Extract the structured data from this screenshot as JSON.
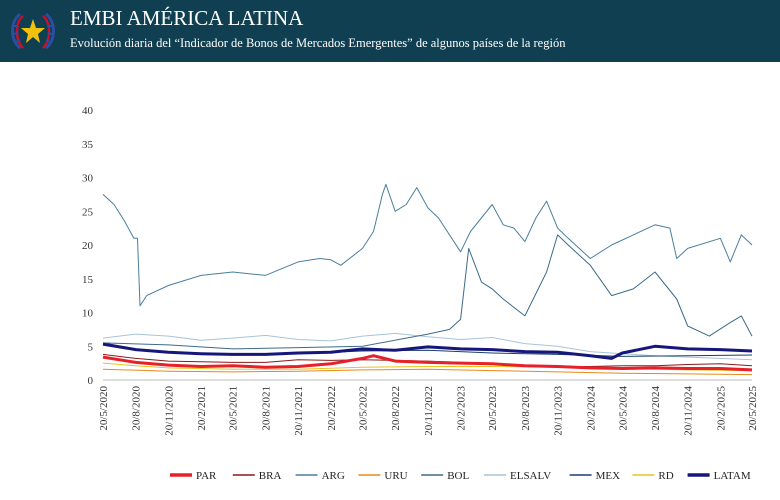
{
  "header": {
    "title": "EMBI AMÉRICA LATINA",
    "subtitle": "Evolución diaria del “Indicador de Bonos de Mercados Emergentes” de algunos países de la región"
  },
  "colors": {
    "header_bg": "#0f3f51",
    "emblem_star": "#f2c10e",
    "emblem_red": "#c8102e",
    "emblem_blue": "#2a4ea0"
  },
  "chart_data": {
    "type": "line",
    "title": "",
    "xlabel": "",
    "ylabel": "",
    "ylim": [
      0,
      40
    ],
    "yticks": [
      0,
      5,
      10,
      15,
      20,
      25,
      30,
      35,
      40
    ],
    "xlim": [
      "2020-05-20",
      "2025-05-20"
    ],
    "xtick_labels": [
      "20/5/2020",
      "20/8/2020",
      "20/11/2020",
      "20/2/2021",
      "20/5/2021",
      "20/8/2021",
      "20/11/2021",
      "20/2/2022",
      "20/5/2022",
      "20/8/2022",
      "20/11/2022",
      "20/2/2023",
      "20/5/2023",
      "20/8/2023",
      "20/11/2023",
      "20/2/2024",
      "20/5/2024",
      "20/8/2024",
      "20/11/2024",
      "20/2/2025",
      "20/5/2025"
    ],
    "grid": false,
    "legend_position": "bottom",
    "series": [
      {
        "name": "PAR",
        "color": "#e8202a",
        "width": 3,
        "points": [
          [
            "2020-05-20",
            3.4
          ],
          [
            "2020-08-20",
            2.6
          ],
          [
            "2020-11-20",
            2.2
          ],
          [
            "2021-02-20",
            2.0
          ],
          [
            "2021-05-20",
            2.1
          ],
          [
            "2021-08-20",
            1.9
          ],
          [
            "2021-11-20",
            2.0
          ],
          [
            "2022-02-20",
            2.4
          ],
          [
            "2022-05-20",
            3.2
          ],
          [
            "2022-06-20",
            3.6
          ],
          [
            "2022-08-20",
            2.8
          ],
          [
            "2022-11-20",
            2.6
          ],
          [
            "2023-02-20",
            2.5
          ],
          [
            "2023-05-20",
            2.4
          ],
          [
            "2023-08-20",
            2.1
          ],
          [
            "2023-11-20",
            2.0
          ],
          [
            "2024-02-20",
            1.8
          ],
          [
            "2024-05-20",
            1.7
          ],
          [
            "2024-08-20",
            1.8
          ],
          [
            "2024-11-20",
            1.7
          ],
          [
            "2025-02-20",
            1.7
          ],
          [
            "2025-05-20",
            1.5
          ]
        ]
      },
      {
        "name": "BRA",
        "color": "#8b1a1a",
        "width": 1,
        "points": [
          [
            "2020-05-20",
            3.8
          ],
          [
            "2020-08-20",
            3.2
          ],
          [
            "2020-11-20",
            2.8
          ],
          [
            "2021-02-20",
            2.7
          ],
          [
            "2021-05-20",
            2.6
          ],
          [
            "2021-08-20",
            2.6
          ],
          [
            "2021-11-20",
            3.0
          ],
          [
            "2022-02-20",
            2.9
          ],
          [
            "2022-05-20",
            3.0
          ],
          [
            "2022-08-20",
            2.9
          ],
          [
            "2022-11-20",
            2.8
          ],
          [
            "2023-02-20",
            2.6
          ],
          [
            "2023-05-20",
            2.4
          ],
          [
            "2023-08-20",
            2.1
          ],
          [
            "2023-11-20",
            2.0
          ],
          [
            "2024-02-20",
            2.0
          ],
          [
            "2024-05-20",
            2.1
          ],
          [
            "2024-08-20",
            2.1
          ],
          [
            "2024-11-20",
            2.3
          ],
          [
            "2025-02-20",
            2.4
          ],
          [
            "2025-05-20",
            2.1
          ]
        ]
      },
      {
        "name": "ARG",
        "color": "#4a7f9c",
        "width": 1,
        "points": [
          [
            "2020-05-20",
            27.5
          ],
          [
            "2020-06-20",
            26.0
          ],
          [
            "2020-07-20",
            23.5
          ],
          [
            "2020-08-15",
            21.0
          ],
          [
            "2020-08-25",
            21.0
          ],
          [
            "2020-09-01",
            11.0
          ],
          [
            "2020-09-20",
            12.5
          ],
          [
            "2020-11-20",
            14.0
          ],
          [
            "2021-02-20",
            15.5
          ],
          [
            "2021-05-20",
            16.0
          ],
          [
            "2021-08-20",
            15.5
          ],
          [
            "2021-11-20",
            17.5
          ],
          [
            "2022-01-20",
            18.0
          ],
          [
            "2022-02-20",
            17.8
          ],
          [
            "2022-03-20",
            17.0
          ],
          [
            "2022-05-20",
            19.5
          ],
          [
            "2022-06-20",
            22.0
          ],
          [
            "2022-07-15",
            27.5
          ],
          [
            "2022-07-25",
            29.0
          ],
          [
            "2022-08-20",
            25.0
          ],
          [
            "2022-09-20",
            26.0
          ],
          [
            "2022-10-20",
            28.5
          ],
          [
            "2022-11-20",
            25.5
          ],
          [
            "2022-12-20",
            24.0
          ],
          [
            "2023-02-20",
            19.0
          ],
          [
            "2023-03-20",
            22.0
          ],
          [
            "2023-05-20",
            26.0
          ],
          [
            "2023-06-20",
            23.0
          ],
          [
            "2023-07-20",
            22.5
          ],
          [
            "2023-08-20",
            20.5
          ],
          [
            "2023-09-20",
            24.0
          ],
          [
            "2023-10-20",
            26.5
          ],
          [
            "2023-11-20",
            22.5
          ],
          [
            "2023-12-20",
            21.0
          ],
          [
            "2024-02-20",
            18.0
          ],
          [
            "2024-04-20",
            20.0
          ],
          [
            "2024-06-20",
            21.5
          ],
          [
            "2024-08-20",
            23.0
          ],
          [
            "2024-10-01",
            22.5
          ],
          [
            "2024-10-20",
            18.0
          ],
          [
            "2024-11-20",
            19.5
          ],
          [
            "2025-02-20",
            21.0
          ],
          [
            "2025-03-20",
            17.5
          ],
          [
            "2025-04-20",
            21.5
          ],
          [
            "2025-05-20",
            20.0
          ]
        ]
      },
      {
        "name": "URU",
        "color": "#e8891a",
        "width": 1,
        "points": [
          [
            "2020-05-20",
            1.6
          ],
          [
            "2020-11-20",
            1.3
          ],
          [
            "2021-05-20",
            1.2
          ],
          [
            "2021-11-20",
            1.3
          ],
          [
            "2022-05-20",
            1.5
          ],
          [
            "2022-11-20",
            1.6
          ],
          [
            "2023-05-20",
            1.4
          ],
          [
            "2023-11-20",
            1.2
          ],
          [
            "2024-05-20",
            1.0
          ],
          [
            "2024-11-20",
            0.9
          ],
          [
            "2025-05-20",
            0.8
          ]
        ]
      },
      {
        "name": "BOL",
        "color": "#3d6b8a",
        "width": 1,
        "points": [
          [
            "2020-05-20",
            5.5
          ],
          [
            "2020-11-20",
            5.2
          ],
          [
            "2021-05-20",
            4.6
          ],
          [
            "2021-11-20",
            4.8
          ],
          [
            "2022-05-20",
            5.0
          ],
          [
            "2022-09-20",
            6.2
          ],
          [
            "2022-11-20",
            6.8
          ],
          [
            "2023-01-20",
            7.5
          ],
          [
            "2023-02-20",
            9.0
          ],
          [
            "2023-03-15",
            19.5
          ],
          [
            "2023-04-20",
            14.5
          ],
          [
            "2023-05-20",
            13.5
          ],
          [
            "2023-06-20",
            12.0
          ],
          [
            "2023-08-20",
            9.5
          ],
          [
            "2023-10-20",
            16.0
          ],
          [
            "2023-11-20",
            21.5
          ],
          [
            "2023-12-20",
            20.0
          ],
          [
            "2024-02-20",
            17.0
          ],
          [
            "2024-04-20",
            12.5
          ],
          [
            "2024-06-20",
            13.5
          ],
          [
            "2024-08-20",
            16.0
          ],
          [
            "2024-10-20",
            12.0
          ],
          [
            "2024-11-20",
            8.0
          ],
          [
            "2025-01-20",
            6.5
          ],
          [
            "2025-03-20",
            8.5
          ],
          [
            "2025-04-20",
            9.5
          ],
          [
            "2025-05-20",
            6.5
          ]
        ]
      },
      {
        "name": "ELSALV",
        "color": "#a8c4d8",
        "width": 1,
        "points": [
          [
            "2020-05-20",
            6.2
          ],
          [
            "2020-08-20",
            6.8
          ],
          [
            "2020-11-20",
            6.5
          ],
          [
            "2021-02-20",
            5.9
          ],
          [
            "2021-05-20",
            6.2
          ],
          [
            "2021-08-20",
            6.6
          ],
          [
            "2021-11-20",
            6.0
          ],
          [
            "2022-02-20",
            5.8
          ],
          [
            "2022-05-20",
            6.5
          ],
          [
            "2022-08-20",
            6.9
          ],
          [
            "2022-11-20",
            6.4
          ],
          [
            "2023-02-20",
            6.0
          ],
          [
            "2023-05-20",
            6.3
          ],
          [
            "2023-08-20",
            5.4
          ],
          [
            "2023-11-20",
            5.0
          ],
          [
            "2024-02-20",
            4.2
          ],
          [
            "2024-05-20",
            3.9
          ],
          [
            "2024-08-20",
            3.6
          ],
          [
            "2024-11-20",
            3.4
          ],
          [
            "2025-02-20",
            3.2
          ],
          [
            "2025-05-20",
            3.0
          ]
        ]
      },
      {
        "name": "MEX",
        "color": "#1b3f6b",
        "width": 1,
        "points": [
          [
            "2020-05-20",
            5.5
          ],
          [
            "2020-08-20",
            4.6
          ],
          [
            "2020-11-20",
            4.0
          ],
          [
            "2021-05-20",
            3.8
          ],
          [
            "2021-11-20",
            3.9
          ],
          [
            "2022-05-20",
            4.3
          ],
          [
            "2022-11-20",
            4.4
          ],
          [
            "2023-05-20",
            4.0
          ],
          [
            "2023-11-20",
            3.8
          ],
          [
            "2024-05-20",
            3.5
          ],
          [
            "2024-11-20",
            3.6
          ],
          [
            "2025-05-20",
            3.7
          ]
        ]
      },
      {
        "name": "RD",
        "color": "#e6c420",
        "width": 1,
        "points": [
          [
            "2020-05-20",
            2.5
          ],
          [
            "2020-08-20",
            2.1
          ],
          [
            "2020-11-20",
            1.8
          ],
          [
            "2021-05-20",
            1.6
          ],
          [
            "2021-11-20",
            1.6
          ],
          [
            "2022-05-20",
            1.9
          ],
          [
            "2022-11-20",
            2.0
          ],
          [
            "2023-05-20",
            2.0
          ],
          [
            "2023-11-20",
            1.9
          ],
          [
            "2024-05-20",
            1.7
          ],
          [
            "2024-11-20",
            1.5
          ],
          [
            "2025-05-20",
            1.4
          ]
        ]
      },
      {
        "name": "LATAM",
        "color": "#16177a",
        "width": 3,
        "points": [
          [
            "2020-05-20",
            5.3
          ],
          [
            "2020-08-20",
            4.5
          ],
          [
            "2020-11-20",
            4.1
          ],
          [
            "2021-02-20",
            3.9
          ],
          [
            "2021-05-20",
            3.8
          ],
          [
            "2021-08-20",
            3.8
          ],
          [
            "2021-11-20",
            4.0
          ],
          [
            "2022-02-20",
            4.1
          ],
          [
            "2022-05-20",
            4.6
          ],
          [
            "2022-08-20",
            4.4
          ],
          [
            "2022-11-20",
            4.9
          ],
          [
            "2023-02-20",
            4.6
          ],
          [
            "2023-05-20",
            4.5
          ],
          [
            "2023-08-20",
            4.2
          ],
          [
            "2023-11-20",
            4.1
          ],
          [
            "2024-02-20",
            3.6
          ],
          [
            "2024-04-20",
            3.2
          ],
          [
            "2024-05-20",
            4.0
          ],
          [
            "2024-08-20",
            5.0
          ],
          [
            "2024-11-20",
            4.6
          ],
          [
            "2025-02-20",
            4.5
          ],
          [
            "2025-05-20",
            4.3
          ]
        ]
      }
    ]
  }
}
